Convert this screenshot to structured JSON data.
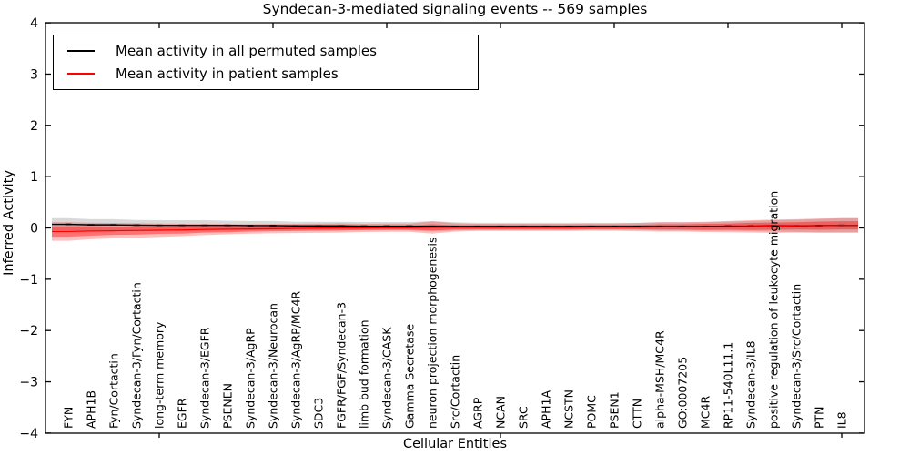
{
  "title": "Syndecan-3-mediated signaling events -- 569 samples",
  "legend": {
    "entries": [
      {
        "label": "Mean activity in all permuted samples",
        "color": "#000000"
      },
      {
        "label": "Mean activity in patient samples",
        "color": "#ff0000"
      }
    ]
  },
  "chart_data": {
    "type": "line",
    "title": "Syndecan-3-mediated signaling events -- 569 samples",
    "xlabel": "Cellular Entities",
    "ylabel": "Inferred Activity",
    "ylim": [
      -4,
      4
    ],
    "yticks": [
      -4,
      -3,
      -2,
      -1,
      0,
      1,
      2,
      3,
      4
    ],
    "ytick_labels": [
      "−4",
      "−3",
      "−2",
      "−1",
      "0",
      "1",
      "2",
      "3",
      "4"
    ],
    "grid": false,
    "legend_position": "upper left",
    "categories": [
      "FYN",
      "APH1B",
      "Fyn/Cortactin",
      "Syndecan-3/Fyn/Cortactin",
      "long-term memory",
      "EGFR",
      "Syndecan-3/EGFR",
      "PSENEN",
      "Syndecan-3/AgRP",
      "Syndecan-3/Neurocan",
      "Syndecan-3/AgRP/MC4R",
      "SDC3",
      "FGFR/FGF/Syndecan-3",
      "limb bud formation",
      "Syndecan-3/CASK",
      "Gamma Secretase",
      "neuron projection morphogenesis",
      "Src/Cortactin",
      "AGRP",
      "NCAN",
      "SRC",
      "APH1A",
      "NCSTN",
      "POMC",
      "PSEN1",
      "CTTN",
      "alpha-MSH/MC4R",
      "GO:0007205",
      "MC4R",
      "RP11-540L11.1",
      "Syndecan-3/IL8",
      "positive regulation of leukocyte migration",
      "Syndecan-3/Src/Cortactin",
      "PTN",
      "IL8"
    ],
    "series": [
      {
        "name": "Mean activity in all permuted samples",
        "color": "#000000",
        "marker": "dash",
        "values": [
          0.07,
          0.06,
          0.06,
          0.055,
          0.05,
          0.05,
          0.05,
          0.05,
          0.045,
          0.045,
          0.04,
          0.04,
          0.04,
          0.035,
          0.035,
          0.035,
          0.03,
          0.03,
          0.03,
          0.03,
          0.03,
          0.03,
          0.03,
          0.03,
          0.03,
          0.03,
          0.03,
          0.03,
          0.03,
          0.035,
          0.035,
          0.04,
          0.04,
          0.045,
          0.05
        ]
      },
      {
        "name": "Mean activity in patient samples",
        "color": "#ff0000",
        "marker": "none",
        "values": [
          -0.07,
          -0.06,
          -0.055,
          -0.05,
          -0.045,
          -0.04,
          -0.03,
          -0.025,
          -0.02,
          -0.015,
          -0.01,
          -0.005,
          0,
          0,
          0.005,
          0.005,
          0.01,
          0.01,
          0.01,
          0.01,
          0.01,
          0.01,
          0.01,
          0.015,
          0.015,
          0.015,
          0.02,
          0.02,
          0.02,
          0.025,
          0.03,
          0.035,
          0.04,
          0.045,
          0.05
        ]
      }
    ],
    "bands": [
      {
        "name": "permuted-samples-spread",
        "color": "rgba(128,128,128,0.30)",
        "center_series": 0,
        "half_widths": [
          0.12,
          0.11,
          0.11,
          0.1,
          0.1,
          0.1,
          0.1,
          0.09,
          0.09,
          0.09,
          0.08,
          0.08,
          0.08,
          0.08,
          0.08,
          0.08,
          0.1,
          0.08,
          0.07,
          0.07,
          0.07,
          0.07,
          0.07,
          0.07,
          0.07,
          0.07,
          0.08,
          0.08,
          0.08,
          0.09,
          0.1,
          0.11,
          0.12,
          0.13,
          0.14
        ]
      },
      {
        "name": "patient-samples-spread-outer",
        "color": "rgba(255,0,0,0.25)",
        "center_series": 1,
        "half_widths": [
          0.18,
          0.16,
          0.15,
          0.14,
          0.13,
          0.12,
          0.11,
          0.1,
          0.09,
          0.09,
          0.09,
          0.09,
          0.09,
          0.08,
          0.08,
          0.08,
          0.12,
          0.08,
          0.07,
          0.07,
          0.07,
          0.07,
          0.07,
          0.07,
          0.07,
          0.08,
          0.09,
          0.09,
          0.1,
          0.11,
          0.12,
          0.13,
          0.13,
          0.14,
          0.14
        ]
      },
      {
        "name": "patient-samples-spread-inner",
        "color": "rgba(255,0,0,0.40)",
        "center_series": 1,
        "half_widths": [
          0.1,
          0.09,
          0.08,
          0.08,
          0.07,
          0.07,
          0.06,
          0.06,
          0.05,
          0.05,
          0.05,
          0.05,
          0.05,
          0.04,
          0.04,
          0.04,
          0.06,
          0.04,
          0.04,
          0.04,
          0.04,
          0.04,
          0.04,
          0.04,
          0.04,
          0.04,
          0.05,
          0.05,
          0.06,
          0.06,
          0.07,
          0.07,
          0.07,
          0.08,
          0.08
        ]
      }
    ],
    "xtick_top_indices": [
      4,
      9,
      14,
      19,
      24,
      29,
      34
    ],
    "xtick_bottom_indices": [
      4,
      19,
      34
    ]
  }
}
